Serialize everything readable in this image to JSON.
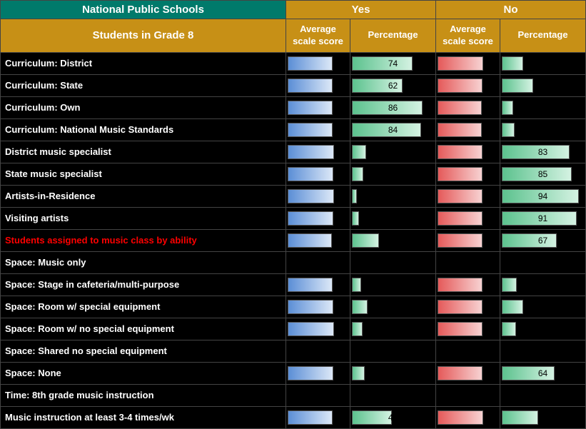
{
  "header": {
    "school": "National Public Schools",
    "yes": "Yes",
    "no": "No",
    "grade": "Students in Grade 8",
    "avg": "Average scale score",
    "pct": "Percentage"
  },
  "colwidths": {
    "label": 400,
    "avg": 90,
    "pct": 120
  },
  "avg_scale_max": 200,
  "pct_scale_max": 100,
  "rows": [
    {
      "label": "Curriculum: District",
      "yes_avg": 148,
      "yes_pct": 74,
      "no_avg": 151,
      "no_pct": 26,
      "red": false
    },
    {
      "label": "Curriculum: State",
      "yes_avg": 148,
      "yes_pct": 62,
      "no_avg": 149,
      "no_pct": 38,
      "red": false
    },
    {
      "label": "Curriculum: Own",
      "yes_avg": 149,
      "yes_pct": 86,
      "no_avg": 147,
      "no_pct": 14,
      "red": false
    },
    {
      "label": "Curriculum: National Music Standards",
      "yes_avg": 149,
      "yes_pct": 84,
      "no_avg": 146,
      "no_pct": 16,
      "red": false
    },
    {
      "label": "District music specialist",
      "yes_avg": 152,
      "yes_pct": 17,
      "no_avg": 148,
      "no_pct": 83,
      "red": false
    },
    {
      "label": "State music specialist",
      "yes_avg": 150,
      "yes_pct": 14,
      "no_avg": 149,
      "no_pct": 85,
      "red": false
    },
    {
      "label": "Artists-in-Residence",
      "yes_avg": 153,
      "yes_pct": 6,
      "no_avg": 148,
      "no_pct": 94,
      "red": false
    },
    {
      "label": "Visiting artists",
      "yes_avg": 151,
      "yes_pct": 9,
      "no_avg": 148,
      "no_pct": 91,
      "red": false
    },
    {
      "label": "Students assigned to music class by ability",
      "yes_avg": 147,
      "yes_pct": 33,
      "no_avg": 149,
      "no_pct": 67,
      "red": true
    },
    {
      "label": "Space: Music only",
      "empty": true,
      "red": false
    },
    {
      "label": "Space: Stage in cafeteria/multi-purpose",
      "yes_avg": 149,
      "yes_pct": 11,
      "no_avg": 149,
      "no_pct": 18,
      "red": false
    },
    {
      "label": "Space: Room w/ special equipment",
      "yes_avg": 150,
      "yes_pct": 19,
      "no_avg": 149,
      "no_pct": 26,
      "red": false
    },
    {
      "label": "Space: Room w/ no special equipment",
      "yes_avg": 152,
      "yes_pct": 13,
      "no_avg": 148,
      "no_pct": 17,
      "red": false
    },
    {
      "label": "Space: Shared no special equipment",
      "empty": true,
      "red": false
    },
    {
      "label": "Space: None",
      "yes_avg": 150,
      "yes_pct": 16,
      "no_avg": 148,
      "no_pct": 64,
      "red": false
    },
    {
      "label": "Time: 8th grade music instruction",
      "empty": true,
      "red": false
    },
    {
      "label": "Music instruction at least 3-4 times/wk",
      "yes_avg": 148,
      "yes_pct": 49,
      "no_avg": 150,
      "no_pct": 44,
      "red": false
    }
  ],
  "colors": {
    "blue_from": "#5b8ed6",
    "blue_to": "#dce8f7",
    "green_from": "#5cc28e",
    "green_to": "#d4f2e2",
    "red_from": "#e55a5a",
    "red_to": "#f7d2d2",
    "teal": "#007a6b",
    "gold": "#c79016",
    "black": "#000000"
  }
}
